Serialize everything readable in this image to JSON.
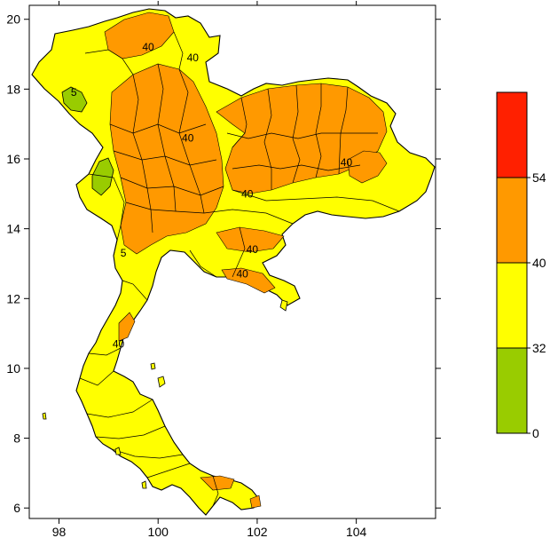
{
  "map": {
    "x_ticks": [
      "98",
      "100",
      "102",
      "104"
    ],
    "y_ticks": [
      "20",
      "18",
      "16",
      "14",
      "12",
      "10",
      "8",
      "6"
    ],
    "x_range": [
      97.4,
      105.6
    ],
    "y_range": [
      5.7,
      20.4
    ],
    "contour_labels": [
      {
        "text": "40",
        "lon": 99.8,
        "lat": 19.1
      },
      {
        "text": "40",
        "lon": 100.7,
        "lat": 18.8
      },
      {
        "text": "40",
        "lon": 100.6,
        "lat": 16.5
      },
      {
        "text": "40",
        "lon": 101.8,
        "lat": 14.9
      },
      {
        "text": "40",
        "lon": 103.8,
        "lat": 15.8
      },
      {
        "text": "40",
        "lon": 101.9,
        "lat": 13.3
      },
      {
        "text": "40",
        "lon": 101.7,
        "lat": 12.6
      },
      {
        "text": "40",
        "lon": 99.2,
        "lat": 10.6
      },
      {
        "text": "5",
        "lon": 98.3,
        "lat": 17.8
      },
      {
        "text": "5",
        "lon": 99.3,
        "lat": 13.2
      }
    ]
  },
  "legend": {
    "levels": [
      "54",
      "40",
      "32",
      "0"
    ],
    "colors": [
      "#ff2000",
      "#ff9900",
      "#ffff00",
      "#99cc00"
    ]
  },
  "colors": {
    "low": "#99cc00",
    "mid": "#ffff00",
    "high": "#ff9900",
    "top": "#ff2000",
    "border": "#000000"
  }
}
